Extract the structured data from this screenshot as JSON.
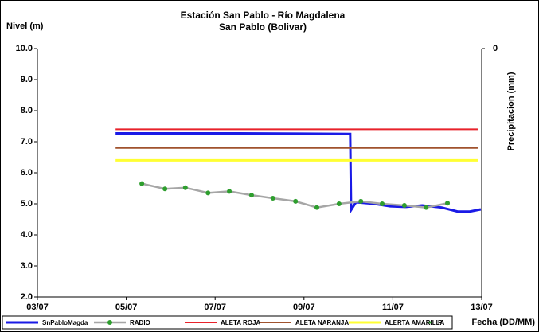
{
  "chart_data": {
    "type": "line",
    "title": "Estación San Pablo - Río Magdalena",
    "subtitle": "San Pablo (Bolivar)",
    "y_label": "Nivel (m)",
    "y2_label": "Precipitacion (mm)",
    "x_label": "Fecha (DD/MM)",
    "xlim": [
      3,
      13
    ],
    "xticks": [
      {
        "value": 3,
        "label": "03/07"
      },
      {
        "value": 5,
        "label": "05/07"
      },
      {
        "value": 7,
        "label": "07/07"
      },
      {
        "value": 9,
        "label": "09/07"
      },
      {
        "value": 11,
        "label": "11/07"
      },
      {
        "value": 13,
        "label": "13/07"
      }
    ],
    "ylim": [
      2,
      10
    ],
    "yticks": [
      {
        "value": 2,
        "label": "2.0"
      },
      {
        "value": 3,
        "label": "3.0"
      },
      {
        "value": 4,
        "label": "4.0"
      },
      {
        "value": 5,
        "label": "5.0"
      },
      {
        "value": 6,
        "label": "6.0"
      },
      {
        "value": 7,
        "label": "7.0"
      },
      {
        "value": 8,
        "label": "8.0"
      },
      {
        "value": 9,
        "label": "9.0"
      },
      {
        "value": 10,
        "label": "10.0"
      }
    ],
    "y2ticks": [
      0
    ],
    "grid": false,
    "legend": "bottom",
    "series": [
      {
        "name": "SnPabloMagda",
        "color": "#1a1ae6",
        "width": 3,
        "marker": false,
        "x": [
          4.76,
          7.53,
          10.04,
          10.06,
          10.17,
          10.58,
          10.94,
          11.3,
          11.66,
          12.1,
          12.46,
          12.73,
          12.98
        ],
        "values": [
          7.27,
          7.27,
          7.25,
          4.8,
          5.05,
          5.0,
          4.92,
          4.9,
          4.95,
          4.88,
          4.75,
          4.75,
          4.82
        ]
      },
      {
        "name": "RADIO",
        "color": "#a6a6a6",
        "marker_color": "#2e9e2e",
        "width": 2.5,
        "marker": true,
        "x": [
          5.35,
          5.87,
          6.33,
          6.84,
          7.32,
          7.82,
          8.3,
          8.81,
          9.29,
          9.79,
          10.28,
          10.76,
          11.26,
          11.75,
          12.23
        ],
        "values": [
          5.65,
          5.48,
          5.52,
          5.35,
          5.4,
          5.28,
          5.18,
          5.08,
          4.88,
          5.0,
          5.08,
          5.0,
          4.95,
          4.88,
          5.02
        ]
      },
      {
        "name": "ALETA ROJA",
        "color": "#e8222a",
        "width": 2,
        "marker": false,
        "x": [
          4.76,
          12.91
        ],
        "values": [
          7.4,
          7.4
        ]
      },
      {
        "name": "ALETA NARANJA",
        "color": "#a0522d",
        "width": 2,
        "marker": false,
        "x": [
          4.76,
          12.91
        ],
        "values": [
          6.8,
          6.8
        ]
      },
      {
        "name": "ALERTA AMARILLA",
        "color": "#ffff33",
        "width": 3,
        "marker": false,
        "x": [
          4.76,
          12.91
        ],
        "values": [
          6.4,
          6.4
        ]
      },
      {
        "name": "P",
        "color": "#2e9e2e",
        "marker_color": "#2e9e2e",
        "width": 0,
        "marker": true,
        "x": [],
        "values": []
      }
    ]
  }
}
